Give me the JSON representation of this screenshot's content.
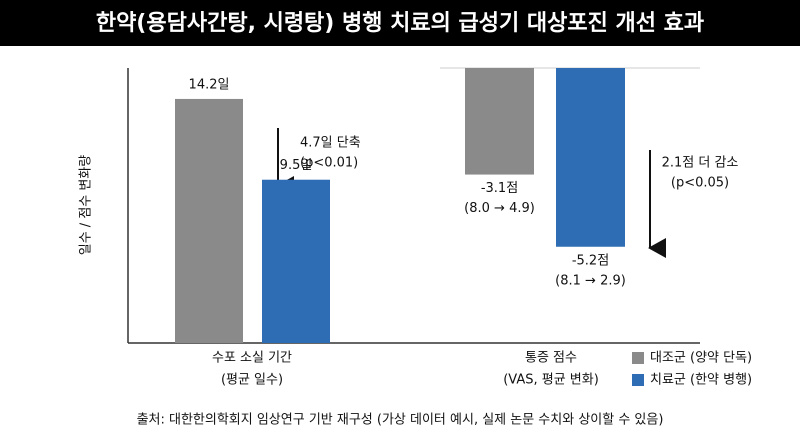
{
  "title": "한약(용담사간탕, 시령탕) 병행 치료의 급성기 대상포진 개선 효과",
  "ylabel": "일수 / 점수 변화량",
  "source": "출처: 대한한의학회지 임상연구 기반 재구성 (가상 데이터 예시, 실제 논문 수치와 상이할 수 있음)",
  "chart_data": [
    {
      "type": "bar",
      "category": "수포 소실 기간",
      "category_note": "(평균 일수)",
      "ylim": [
        0,
        16
      ],
      "series": [
        {
          "color": "#8a8a8a",
          "values": [
            14.2
          ],
          "value_labels": [
            "14.2일"
          ]
        },
        {
          "color": "#2e6db4",
          "values": [
            9.5
          ],
          "value_labels": [
            "9.5일"
          ]
        }
      ],
      "annotation": [
        "4.7일 단축",
        "(p<0.01)"
      ]
    },
    {
      "type": "bar",
      "category": "통증 점수",
      "category_note": "(VAS, 평균 변화)",
      "ylim": [
        -8,
        0
      ],
      "series": [
        {
          "name": "대조군 (양약 단독)",
          "color": "#8a8a8a",
          "values": [
            -3.1
          ],
          "value_labels": [
            "-3.1점"
          ],
          "value_notes": [
            "(8.0 → 4.9)"
          ]
        },
        {
          "name": "치료군 (한약 병행)",
          "color": "#2e6db4",
          "values": [
            -5.2
          ],
          "value_labels": [
            "-5.2점"
          ],
          "value_notes": [
            "(8.1 → 2.9)"
          ]
        }
      ],
      "annotation": [
        "2.1점 더 감소",
        "(p<0.05)"
      ]
    }
  ]
}
